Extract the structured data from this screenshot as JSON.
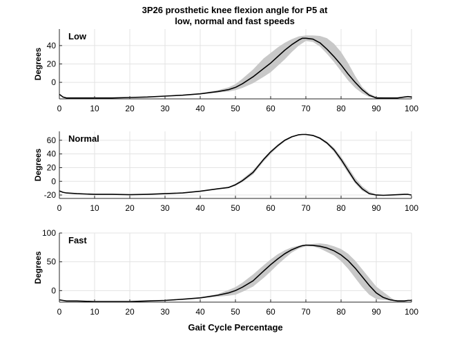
{
  "figure": {
    "title_line1": "3P26 prosthetic knee flexion angle for P5 at",
    "title_line2": "low, normal and fast speeds",
    "xlabel": "Gait Cycle Percentage"
  },
  "colors": {
    "band": "#c8c8c8",
    "line": "#000000",
    "grid": "#e3e3e3",
    "axis": "#262626"
  },
  "chart_data": [
    {
      "type": "line",
      "label": "Low",
      "ylabel": "Degrees",
      "xlim": [
        0,
        100
      ],
      "ylim": [
        -18,
        58
      ],
      "xticks": [
        0,
        10,
        20,
        30,
        40,
        50,
        60,
        70,
        80,
        90,
        100
      ],
      "yticks": [
        0,
        20,
        40
      ],
      "grid": true,
      "series": [
        {
          "role": "mean",
          "x": [
            0,
            1,
            2,
            5,
            10,
            15,
            20,
            25,
            30,
            35,
            40,
            45,
            48,
            50,
            52,
            55,
            58,
            60,
            62,
            64,
            66,
            68,
            69,
            70,
            72,
            74,
            76,
            78,
            80,
            82,
            84,
            86,
            88,
            90,
            92,
            94,
            96,
            98,
            99,
            100
          ],
          "y": [
            -13,
            -16,
            -17,
            -17,
            -17,
            -17,
            -16.5,
            -16,
            -15,
            -14,
            -12.5,
            -10,
            -8,
            -5.5,
            -1.5,
            6,
            15,
            21,
            28,
            35,
            41,
            46,
            48,
            48,
            47,
            43,
            36,
            28,
            19,
            9,
            0,
            -8,
            -14,
            -17,
            -17,
            -17,
            -17,
            -16,
            -15.5,
            -16
          ]
        },
        {
          "role": "band_upper",
          "x": [
            0,
            10,
            20,
            30,
            40,
            45,
            48,
            50,
            52,
            55,
            58,
            60,
            62,
            64,
            66,
            68,
            70,
            72,
            74,
            76,
            78,
            80,
            82,
            84,
            86,
            88,
            90,
            95,
            100
          ],
          "y": [
            -13,
            -17,
            -16.5,
            -15,
            -12,
            -8.5,
            -5.5,
            -2,
            4,
            14,
            26,
            32,
            38,
            43,
            47,
            50,
            51,
            51,
            50.5,
            48,
            42,
            33,
            21,
            7,
            -5,
            -12,
            -16,
            -17,
            -16
          ]
        },
        {
          "role": "band_lower",
          "x": [
            0,
            10,
            20,
            30,
            40,
            45,
            48,
            50,
            52,
            55,
            58,
            60,
            62,
            64,
            66,
            68,
            70,
            72,
            74,
            76,
            78,
            80,
            82,
            84,
            86,
            88,
            90,
            95,
            100
          ],
          "y": [
            -13,
            -17,
            -16.5,
            -15,
            -13,
            -11,
            -10,
            -8.5,
            -6,
            -1,
            6,
            11,
            18,
            25,
            33,
            40,
            45,
            44,
            39,
            31,
            22,
            12,
            2,
            -6,
            -12,
            -16,
            -17,
            -17,
            -16
          ]
        }
      ]
    },
    {
      "type": "line",
      "label": "Normal",
      "ylabel": "Degrees",
      "xlim": [
        0,
        100
      ],
      "ylim": [
        -25,
        73
      ],
      "xticks": [
        0,
        10,
        20,
        30,
        40,
        50,
        60,
        70,
        80,
        90,
        100
      ],
      "yticks": [
        -20,
        0,
        20,
        40,
        60
      ],
      "grid": true,
      "series": [
        {
          "role": "mean",
          "x": [
            0,
            1,
            2,
            5,
            10,
            15,
            20,
            25,
            30,
            35,
            40,
            45,
            48,
            50,
            52,
            55,
            58,
            60,
            62,
            64,
            66,
            68,
            69,
            70,
            72,
            74,
            76,
            78,
            80,
            82,
            84,
            86,
            88,
            90,
            92,
            94,
            96,
            98,
            99,
            100
          ],
          "y": [
            -14,
            -16,
            -17,
            -18,
            -19,
            -19,
            -19.5,
            -19,
            -18,
            -17,
            -14.5,
            -11,
            -9,
            -5,
            1,
            13,
            32,
            43,
            52,
            60,
            65,
            68,
            68.5,
            68.5,
            67,
            63,
            56,
            46,
            32,
            16,
            0,
            -11,
            -18,
            -20,
            -20.5,
            -20,
            -19.5,
            -19,
            -19,
            -20
          ]
        },
        {
          "role": "band_upper",
          "x": [
            0,
            10,
            20,
            30,
            40,
            45,
            48,
            50,
            52,
            55,
            58,
            60,
            62,
            64,
            66,
            68,
            70,
            72,
            74,
            76,
            78,
            80,
            82,
            84,
            86,
            88,
            90,
            95,
            100
          ],
          "y": [
            -14,
            -19,
            -19.5,
            -18,
            -14.5,
            -10.5,
            -8,
            -3.5,
            3.5,
            16,
            34,
            45,
            54,
            61,
            66,
            69,
            69.5,
            68,
            64.5,
            58,
            49,
            36,
            21,
            5,
            -7,
            -15,
            -19,
            -20,
            -20
          ]
        },
        {
          "role": "band_lower",
          "x": [
            0,
            10,
            20,
            30,
            40,
            45,
            48,
            50,
            52,
            55,
            58,
            60,
            62,
            64,
            66,
            68,
            70,
            72,
            74,
            76,
            78,
            80,
            82,
            84,
            86,
            88,
            90,
            95,
            100
          ],
          "y": [
            -14,
            -19,
            -19.5,
            -18,
            -14.5,
            -11.5,
            -10,
            -6.5,
            -1,
            10,
            29,
            40,
            50,
            58,
            64,
            67.5,
            68,
            66,
            61.5,
            54,
            43,
            28,
            12,
            -3,
            -14,
            -19,
            -20.5,
            -20,
            -20
          ]
        }
      ]
    },
    {
      "type": "line",
      "label": "Fast",
      "ylabel": "Degrees",
      "xlim": [
        0,
        100
      ],
      "ylim": [
        -20,
        100
      ],
      "xticks": [
        0,
        10,
        20,
        30,
        40,
        50,
        60,
        70,
        80,
        90,
        100
      ],
      "yticks": [
        0,
        50,
        100
      ],
      "grid": true,
      "series": [
        {
          "role": "mean",
          "x": [
            0,
            1,
            2,
            5,
            10,
            15,
            20,
            25,
            30,
            35,
            40,
            45,
            48,
            50,
            52,
            55,
            58,
            60,
            62,
            64,
            66,
            68,
            69,
            70,
            72,
            74,
            76,
            78,
            80,
            82,
            84,
            86,
            88,
            90,
            92,
            94,
            96,
            98,
            99,
            100
          ],
          "y": [
            -16,
            -17,
            -18,
            -18,
            -19,
            -19,
            -19,
            -18,
            -17,
            -15,
            -12.5,
            -8,
            -4,
            0,
            6,
            17,
            34,
            45,
            55,
            64,
            71,
            76,
            78,
            79,
            78.5,
            77,
            74,
            69,
            62,
            52,
            39,
            24,
            9,
            -4,
            -12,
            -16,
            -18,
            -18,
            -17,
            -17
          ]
        },
        {
          "role": "band_upper",
          "x": [
            0,
            10,
            20,
            30,
            40,
            45,
            48,
            50,
            52,
            55,
            58,
            60,
            62,
            64,
            66,
            68,
            70,
            72,
            74,
            76,
            78,
            80,
            82,
            84,
            86,
            88,
            90,
            95,
            100
          ],
          "y": [
            -16,
            -19,
            -19,
            -17,
            -12,
            -6,
            1,
            6,
            14,
            28,
            44,
            54,
            63,
            70,
            75,
            78,
            80,
            81,
            82,
            80.5,
            77,
            72,
            64,
            52,
            37,
            22,
            7,
            -16,
            -17
          ]
        },
        {
          "role": "band_lower",
          "x": [
            0,
            10,
            20,
            30,
            40,
            45,
            48,
            50,
            52,
            55,
            58,
            60,
            62,
            64,
            66,
            68,
            70,
            72,
            74,
            76,
            78,
            80,
            82,
            84,
            86,
            88,
            90,
            95,
            100
          ],
          "y": [
            -16,
            -19,
            -19,
            -17,
            -13.5,
            -10.5,
            -9,
            -7,
            -2,
            7,
            22,
            33,
            45,
            56,
            66,
            73,
            77,
            77,
            73,
            67,
            61,
            51,
            38,
            22,
            6,
            -7,
            -15,
            -18,
            -17
          ]
        }
      ]
    }
  ]
}
